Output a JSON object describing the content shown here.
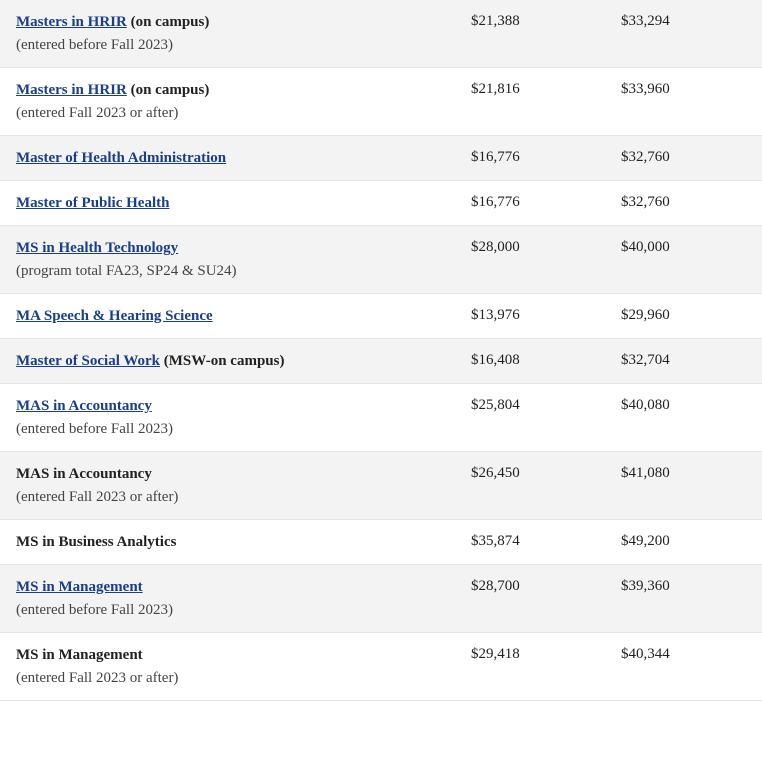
{
  "rows": [
    {
      "shaded": true,
      "link": "Masters in HRIR",
      "is_link": true,
      "suffix": " (on campus)",
      "note": "(entered before Fall 2023)",
      "val1": "$21,388",
      "val2": "$33,294"
    },
    {
      "shaded": false,
      "link": "Masters in HRIR",
      "is_link": true,
      "suffix": " (on campus)",
      "note": "(entered Fall 2023 or after)",
      "val1": "$21,816",
      "val2": "$33,960"
    },
    {
      "shaded": true,
      "link": "Master of Health Administration",
      "is_link": true,
      "suffix": "",
      "note": "",
      "val1": "$16,776",
      "val2": "$32,760"
    },
    {
      "shaded": false,
      "link": "Master of Public Health",
      "is_link": true,
      "suffix": "",
      "note": "",
      "val1": "$16,776",
      "val2": "$32,760"
    },
    {
      "shaded": true,
      "link": "MS in Health Technology",
      "is_link": true,
      "suffix": "",
      "note": "(program total FA23, SP24 & SU24)",
      "val1": "$28,000",
      "val2": "$40,000"
    },
    {
      "shaded": false,
      "link": "MA Speech & Hearing Science",
      "is_link": true,
      "suffix": "",
      "note": "",
      "val1": "$13,976",
      "val2": "$29,960"
    },
    {
      "shaded": true,
      "link": "Master of Social Work",
      "is_link": true,
      "suffix": " (MSW-on campus)",
      "note": "",
      "val1": "$16,408",
      "val2": "$32,704"
    },
    {
      "shaded": false,
      "link": "MAS in Accountancy",
      "is_link": true,
      "suffix": "",
      "note": "(entered before Fall 2023)",
      "val1": "$25,804",
      "val2": "$40,080"
    },
    {
      "shaded": true,
      "link": "MAS in Accountancy",
      "is_link": false,
      "suffix": "",
      "note": "(entered Fall 2023 or after)",
      "val1": "$26,450",
      "val2": "$41,080"
    },
    {
      "shaded": false,
      "link": "MS in Business Analytics",
      "is_link": false,
      "suffix": "",
      "note": "",
      "val1": "$35,874",
      "val2": "$49,200"
    },
    {
      "shaded": true,
      "link": "MS in Management",
      "is_link": true,
      "suffix": "",
      "note": "(entered before Fall 2023)",
      "val1": "$28,700",
      "val2": "$39,360"
    },
    {
      "shaded": false,
      "link": "MS in Management",
      "is_link": false,
      "suffix": "",
      "note": "(entered Fall 2023 or after)",
      "val1": "$29,418",
      "val2": "$40,344"
    }
  ],
  "colors": {
    "link": "#1a3e8a",
    "shaded_bg": "#f3f3f3",
    "light_bg": "#ffffff",
    "border": "#e5e5e5",
    "text": "#222222"
  }
}
